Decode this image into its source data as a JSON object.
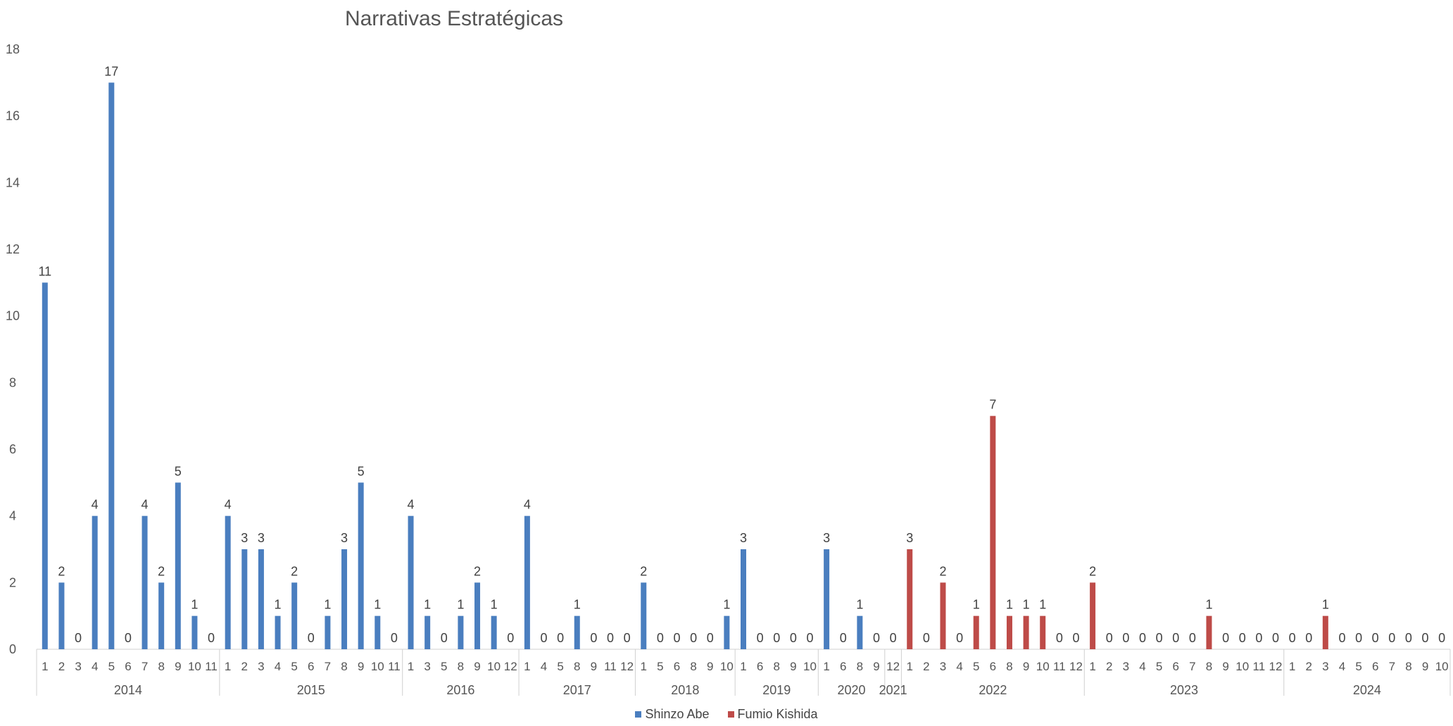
{
  "chart_data": {
    "type": "bar",
    "title": "Narrativas Estratégicas",
    "xlabel": "",
    "ylabel": "",
    "ylim": [
      0,
      18
    ],
    "yticks": [
      0,
      2,
      4,
      6,
      8,
      10,
      12,
      14,
      16,
      18
    ],
    "grid": false,
    "legend_position": "bottom",
    "colors": {
      "Shinzo Abe": "#4a7ebf",
      "Fumio Kishida": "#be4b48"
    },
    "groups": [
      {
        "year": "2014",
        "bars": [
          {
            "m": "1",
            "v": 11,
            "s": "Shinzo Abe"
          },
          {
            "m": "2",
            "v": 2,
            "s": "Shinzo Abe"
          },
          {
            "m": "3",
            "v": 0,
            "s": "Shinzo Abe"
          },
          {
            "m": "4",
            "v": 4,
            "s": "Shinzo Abe"
          },
          {
            "m": "5",
            "v": 17,
            "s": "Shinzo Abe"
          },
          {
            "m": "6",
            "v": 0,
            "s": "Shinzo Abe"
          },
          {
            "m": "7",
            "v": 4,
            "s": "Shinzo Abe"
          },
          {
            "m": "8",
            "v": 2,
            "s": "Shinzo Abe"
          },
          {
            "m": "9",
            "v": 5,
            "s": "Shinzo Abe"
          },
          {
            "m": "10",
            "v": 1,
            "s": "Shinzo Abe"
          },
          {
            "m": "11",
            "v": 0,
            "s": "Shinzo Abe"
          }
        ]
      },
      {
        "year": "2015",
        "bars": [
          {
            "m": "1",
            "v": 4,
            "s": "Shinzo Abe"
          },
          {
            "m": "2",
            "v": 3,
            "s": "Shinzo Abe"
          },
          {
            "m": "3",
            "v": 3,
            "s": "Shinzo Abe"
          },
          {
            "m": "4",
            "v": 1,
            "s": "Shinzo Abe"
          },
          {
            "m": "5",
            "v": 2,
            "s": "Shinzo Abe"
          },
          {
            "m": "6",
            "v": 0,
            "s": "Shinzo Abe"
          },
          {
            "m": "7",
            "v": 1,
            "s": "Shinzo Abe"
          },
          {
            "m": "8",
            "v": 3,
            "s": "Shinzo Abe"
          },
          {
            "m": "9",
            "v": 5,
            "s": "Shinzo Abe"
          },
          {
            "m": "10",
            "v": 1,
            "s": "Shinzo Abe"
          },
          {
            "m": "11",
            "v": 0,
            "s": "Shinzo Abe"
          }
        ]
      },
      {
        "year": "2016",
        "bars": [
          {
            "m": "1",
            "v": 4,
            "s": "Shinzo Abe"
          },
          {
            "m": "3",
            "v": 1,
            "s": "Shinzo Abe"
          },
          {
            "m": "5",
            "v": 0,
            "s": "Shinzo Abe"
          },
          {
            "m": "8",
            "v": 1,
            "s": "Shinzo Abe"
          },
          {
            "m": "9",
            "v": 2,
            "s": "Shinzo Abe"
          },
          {
            "m": "10",
            "v": 1,
            "s": "Shinzo Abe"
          },
          {
            "m": "12",
            "v": 0,
            "s": "Shinzo Abe"
          }
        ]
      },
      {
        "year": "2017",
        "bars": [
          {
            "m": "1",
            "v": 4,
            "s": "Shinzo Abe"
          },
          {
            "m": "4",
            "v": 0,
            "s": "Shinzo Abe"
          },
          {
            "m": "5",
            "v": 0,
            "s": "Shinzo Abe"
          },
          {
            "m": "8",
            "v": 1,
            "s": "Shinzo Abe"
          },
          {
            "m": "9",
            "v": 0,
            "s": "Shinzo Abe"
          },
          {
            "m": "11",
            "v": 0,
            "s": "Shinzo Abe"
          },
          {
            "m": "12",
            "v": 0,
            "s": "Shinzo Abe"
          }
        ]
      },
      {
        "year": "2018",
        "bars": [
          {
            "m": "1",
            "v": 2,
            "s": "Shinzo Abe"
          },
          {
            "m": "5",
            "v": 0,
            "s": "Shinzo Abe"
          },
          {
            "m": "6",
            "v": 0,
            "s": "Shinzo Abe"
          },
          {
            "m": "8",
            "v": 0,
            "s": "Shinzo Abe"
          },
          {
            "m": "9",
            "v": 0,
            "s": "Shinzo Abe"
          },
          {
            "m": "10",
            "v": 1,
            "s": "Shinzo Abe"
          }
        ]
      },
      {
        "year": "2019",
        "bars": [
          {
            "m": "1",
            "v": 3,
            "s": "Shinzo Abe"
          },
          {
            "m": "6",
            "v": 0,
            "s": "Shinzo Abe"
          },
          {
            "m": "8",
            "v": 0,
            "s": "Shinzo Abe"
          },
          {
            "m": "9",
            "v": 0,
            "s": "Shinzo Abe"
          },
          {
            "m": "10",
            "v": 0,
            "s": "Shinzo Abe"
          }
        ]
      },
      {
        "year": "2020",
        "bars": [
          {
            "m": "1",
            "v": 3,
            "s": "Shinzo Abe"
          },
          {
            "m": "6",
            "v": 0,
            "s": "Shinzo Abe"
          },
          {
            "m": "8",
            "v": 1,
            "s": "Shinzo Abe"
          },
          {
            "m": "9",
            "v": 0,
            "s": "Shinzo Abe"
          }
        ]
      },
      {
        "year": "2021",
        "bars": [
          {
            "m": "12",
            "v": 0,
            "s": "Shinzo Abe"
          }
        ]
      },
      {
        "year": "2022",
        "bars": [
          {
            "m": "1",
            "v": 3,
            "s": "Fumio Kishida"
          },
          {
            "m": "2",
            "v": 0,
            "s": "Fumio Kishida"
          },
          {
            "m": "3",
            "v": 2,
            "s": "Fumio Kishida"
          },
          {
            "m": "4",
            "v": 0,
            "s": "Fumio Kishida"
          },
          {
            "m": "5",
            "v": 1,
            "s": "Fumio Kishida"
          },
          {
            "m": "6",
            "v": 7,
            "s": "Fumio Kishida"
          },
          {
            "m": "8",
            "v": 1,
            "s": "Fumio Kishida"
          },
          {
            "m": "9",
            "v": 1,
            "s": "Fumio Kishida"
          },
          {
            "m": "10",
            "v": 1,
            "s": "Fumio Kishida"
          },
          {
            "m": "11",
            "v": 0,
            "s": "Fumio Kishida"
          },
          {
            "m": "12",
            "v": 0,
            "s": "Fumio Kishida"
          }
        ]
      },
      {
        "year": "2023",
        "bars": [
          {
            "m": "1",
            "v": 2,
            "s": "Fumio Kishida"
          },
          {
            "m": "2",
            "v": 0,
            "s": "Fumio Kishida"
          },
          {
            "m": "3",
            "v": 0,
            "s": "Fumio Kishida"
          },
          {
            "m": "4",
            "v": 0,
            "s": "Fumio Kishida"
          },
          {
            "m": "5",
            "v": 0,
            "s": "Fumio Kishida"
          },
          {
            "m": "6",
            "v": 0,
            "s": "Fumio Kishida"
          },
          {
            "m": "7",
            "v": 0,
            "s": "Fumio Kishida"
          },
          {
            "m": "8",
            "v": 1,
            "s": "Fumio Kishida"
          },
          {
            "m": "9",
            "v": 0,
            "s": "Fumio Kishida"
          },
          {
            "m": "10",
            "v": 0,
            "s": "Fumio Kishida"
          },
          {
            "m": "11",
            "v": 0,
            "s": "Fumio Kishida"
          },
          {
            "m": "12",
            "v": 0,
            "s": "Fumio Kishida"
          }
        ]
      },
      {
        "year": "2024",
        "bars": [
          {
            "m": "1",
            "v": 0,
            "s": "Fumio Kishida"
          },
          {
            "m": "2",
            "v": 0,
            "s": "Fumio Kishida"
          },
          {
            "m": "3",
            "v": 1,
            "s": "Fumio Kishida"
          },
          {
            "m": "4",
            "v": 0,
            "s": "Fumio Kishida"
          },
          {
            "m": "5",
            "v": 0,
            "s": "Fumio Kishida"
          },
          {
            "m": "6",
            "v": 0,
            "s": "Fumio Kishida"
          },
          {
            "m": "7",
            "v": 0,
            "s": "Fumio Kishida"
          },
          {
            "m": "8",
            "v": 0,
            "s": "Fumio Kishida"
          },
          {
            "m": "9",
            "v": 0,
            "s": "Fumio Kishida"
          },
          {
            "m": "10",
            "v": 0,
            "s": "Fumio Kishida"
          }
        ]
      }
    ],
    "legend": [
      {
        "name": "Shinzo Abe",
        "color": "#4a7ebf"
      },
      {
        "name": "Fumio Kishida",
        "color": "#be4b48"
      }
    ]
  }
}
